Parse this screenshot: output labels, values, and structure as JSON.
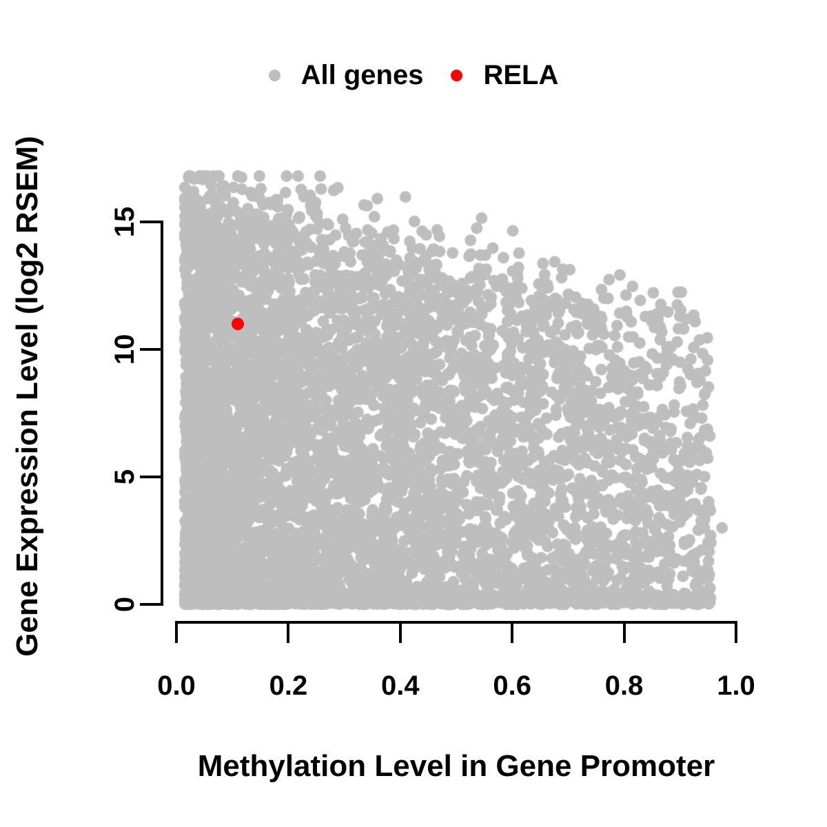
{
  "figure": {
    "background_color": "#ffffff",
    "axis_color": "#000000",
    "text_color": "#000000"
  },
  "chart_data": {
    "type": "scatter",
    "title": "",
    "xlabel": "Methylation Level in Gene Promoter",
    "ylabel": "Gene Expression Level (log2 RSEM)",
    "xlim": [
      0,
      1.0
    ],
    "ylim": [
      0,
      17
    ],
    "grid": false,
    "legend_position": "top-center",
    "x_ticks": [
      0,
      0.2,
      0.4,
      0.6,
      0.8,
      1.0
    ],
    "x_tick_labels": [
      "0.0",
      "0.2",
      "0.4",
      "0.6",
      "0.8",
      "1.0"
    ],
    "y_ticks": [
      0,
      5,
      10,
      15
    ],
    "y_tick_labels": [
      "0",
      "5",
      "10",
      "15"
    ],
    "legend": [
      {
        "label": "All genes",
        "color": "#BEBEBE",
        "marker": "circle"
      },
      {
        "label": "RELA",
        "color": "#FF0000",
        "marker": "circle"
      }
    ],
    "series": [
      {
        "name": "All genes",
        "color": "#BEBEBE",
        "marker_radius_px": 8.5,
        "cloud": {
          "description": "dense left-skewed cloud: expression 0 to ~16.6 at low methylation, upper envelope declining with methylation to ~11.5 at 0.95; heavy band along expression 0; sparse speckled upper boundary",
          "n_points": 6500,
          "n_strays": 30,
          "seed": 42,
          "x_range": [
            0.015,
            0.955
          ],
          "y_range": [
            0,
            16.8
          ],
          "top_envelope": {
            "intercept": 16.2,
            "slope": -5.2,
            "jitter_sd": 0.9
          },
          "isolated_point": [
            0.975,
            3.0
          ]
        }
      },
      {
        "name": "RELA",
        "color": "#FF0000",
        "marker_radius_px": 9,
        "points": [
          [
            0.11,
            11.0
          ]
        ]
      }
    ]
  }
}
